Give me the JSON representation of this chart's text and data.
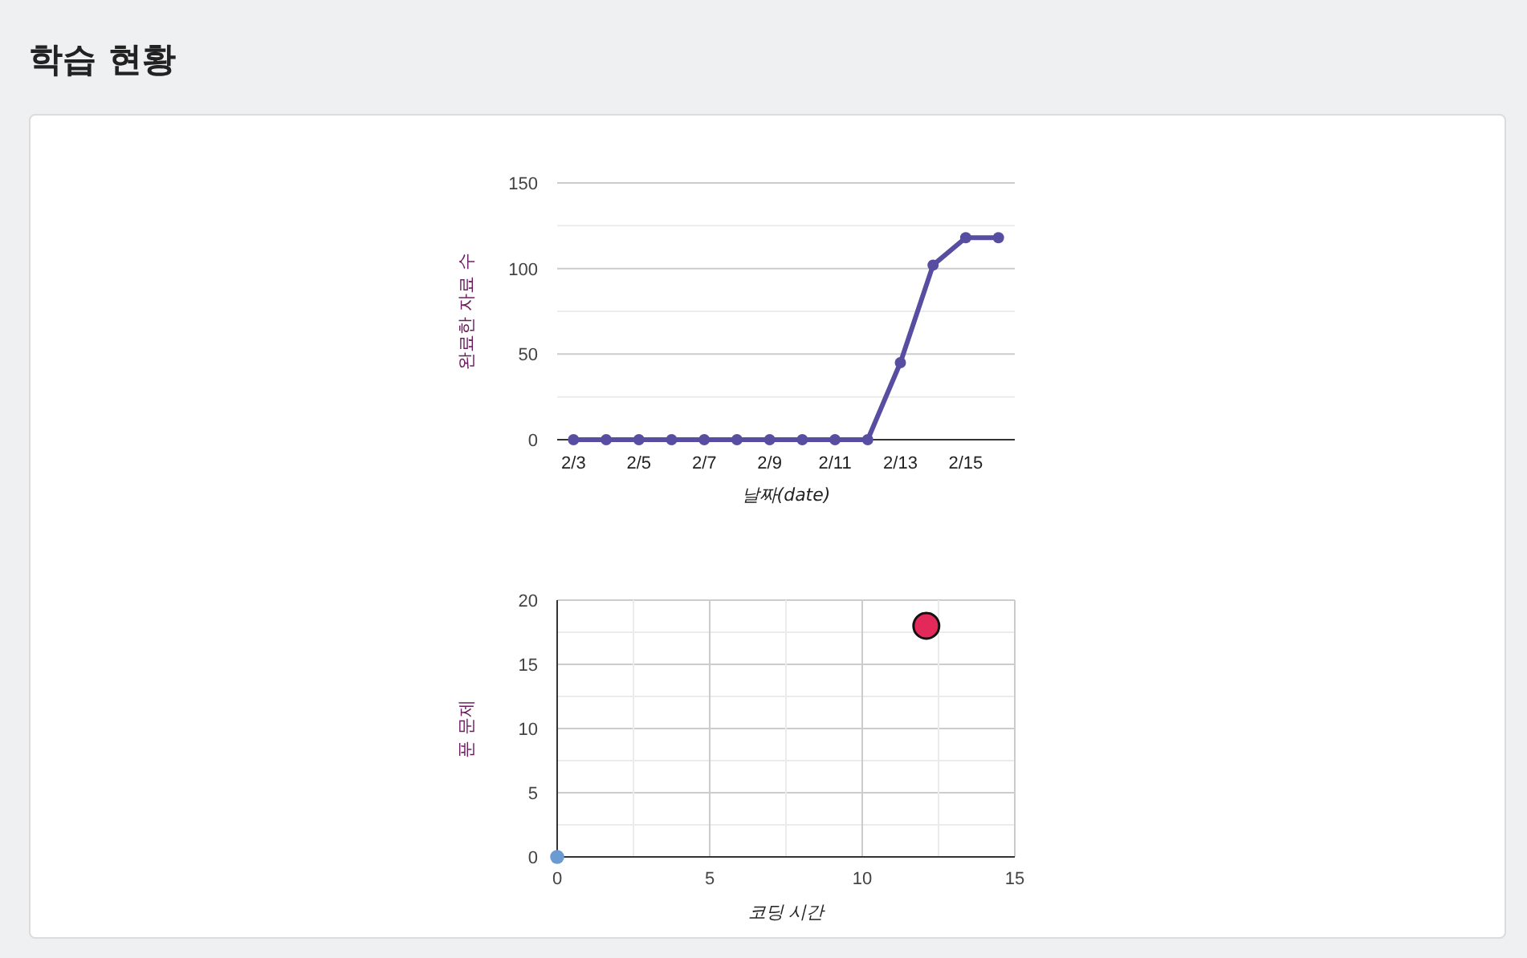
{
  "chart_data": [
    {
      "type": "other",
      "title": "학습 현황"
    },
    {
      "type": "line",
      "ylabel": "완료한 자료 수",
      "xlabel": "날짜(date)",
      "categories": [
        "2/3",
        null,
        "2/5",
        null,
        "2/7",
        null,
        "2/9",
        null,
        "2/11",
        null,
        "2/13",
        null,
        "2/15",
        null
      ],
      "series": [
        {
          "color": "#574ea1",
          "values": [
            0,
            0,
            0,
            0,
            0,
            0,
            0,
            0,
            0,
            0,
            45,
            102,
            118,
            118
          ]
        }
      ],
      "ylim": [
        0,
        150
      ],
      "yticks": [
        0,
        50,
        100,
        150
      ],
      "grid": "y",
      "marker": "circle",
      "line_style": "solid"
    },
    {
      "type": "bubble",
      "ylabel": "푼 문제",
      "xlabel": "코딩 시간",
      "x": [
        0,
        12.1
      ],
      "values": [
        0,
        18
      ],
      "sizes": [
        0.3,
        1
      ],
      "colors": [
        "#6b9bd1",
        "#e3295a"
      ],
      "xlim": [
        0,
        15
      ],
      "xticks": [
        0,
        5,
        10,
        15
      ],
      "ylim": [
        0,
        20
      ],
      "yticks": [
        0,
        5,
        10,
        15,
        20
      ],
      "grid": true
    }
  ]
}
